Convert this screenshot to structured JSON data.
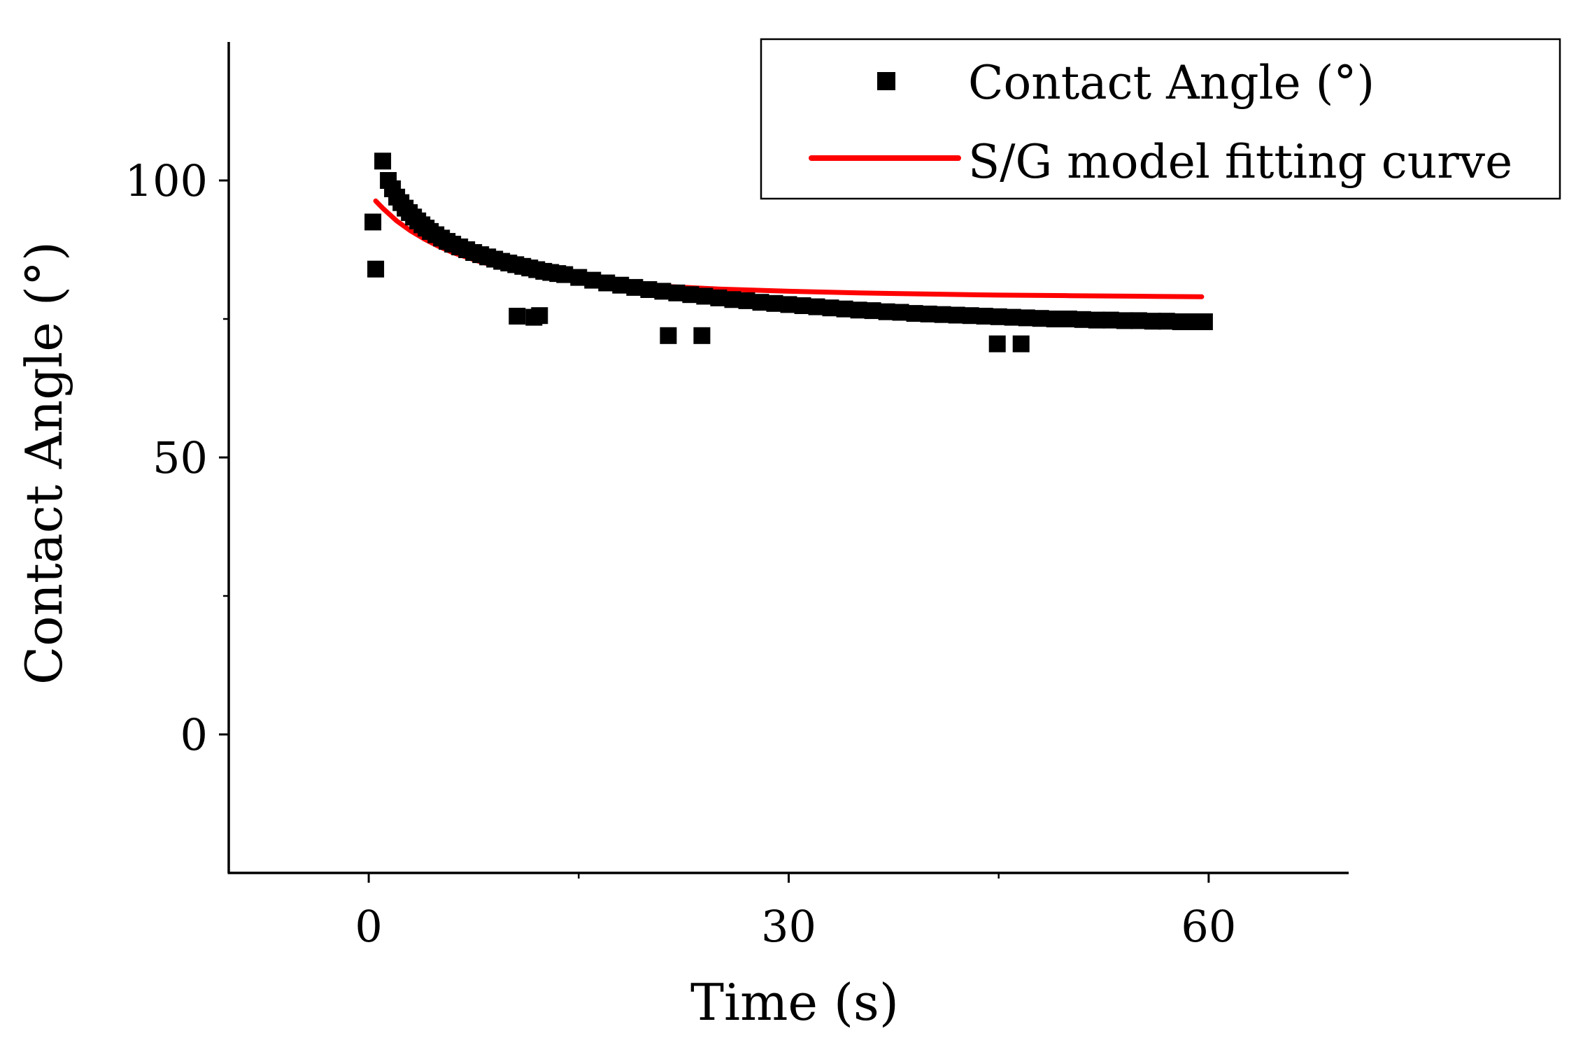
{
  "chart_data": {
    "type": "scatter",
    "title": "",
    "xlabel": "Time (s)",
    "ylabel": "Contact Angle (°)",
    "xlim": [
      -10,
      70
    ],
    "ylim": [
      -25,
      125
    ],
    "xticks": [
      0,
      30,
      60
    ],
    "xtick_labels": [
      "0",
      "30",
      "60"
    ],
    "xminor_ticks": [
      15,
      45
    ],
    "yticks": [
      0,
      50,
      100
    ],
    "ytick_labels": [
      "0",
      "50",
      "100"
    ],
    "yminor_ticks": [
      25,
      75
    ],
    "legend_position": "top-right",
    "colors": {
      "points": "#000000",
      "fit": "#ff0000",
      "axis": "#000000"
    },
    "series": [
      {
        "name": "Contact Angle (°)",
        "kind": "scatter",
        "marker": "square",
        "x": [
          0.3,
          0.5,
          1.0,
          1.4,
          1.7,
          2.0,
          2.3,
          2.6,
          2.9,
          3.2,
          3.5,
          3.8,
          4.1,
          4.4,
          4.8,
          5.2,
          5.6,
          6.0,
          6.5,
          7.0,
          7.5,
          8.0,
          8.5,
          9.0,
          9.5,
          10.0,
          10.5,
          11.0,
          11.5,
          12.0,
          12.5,
          13.0,
          13.5,
          14.0,
          15.0,
          16.0,
          17.0,
          18.0,
          19.0,
          20.0,
          21.0,
          22.0,
          23.0,
          24.0,
          25.0,
          26.0,
          27.0,
          28.0,
          29.0,
          30.0,
          31.0,
          32.0,
          33.0,
          34.0,
          35.0,
          36.0,
          37.0,
          38.0,
          39.0,
          40.0,
          41.0,
          42.0,
          43.0,
          44.0,
          45.0,
          46.0,
          47.0,
          48.0,
          49.0,
          50.0,
          51.0,
          52.0,
          53.0,
          54.0,
          55.0,
          56.0,
          57.0,
          58.0,
          59.0,
          59.7,
          10.6,
          11.8,
          12.2,
          21.4,
          23.8,
          44.9,
          46.6
        ],
        "y": [
          92.5,
          84.0,
          103.5,
          100.0,
          98.5,
          97.0,
          96.0,
          95.0,
          94.2,
          93.4,
          92.7,
          92.0,
          91.4,
          90.8,
          90.2,
          89.6,
          89.0,
          88.5,
          88.0,
          87.5,
          87.0,
          86.6,
          86.2,
          85.8,
          85.4,
          85.1,
          84.8,
          84.5,
          84.2,
          83.9,
          83.6,
          83.4,
          83.2,
          83.0,
          82.5,
          82.0,
          81.5,
          81.1,
          80.7,
          80.3,
          80.0,
          79.7,
          79.4,
          79.1,
          78.8,
          78.5,
          78.3,
          78.0,
          77.8,
          77.6,
          77.4,
          77.2,
          77.0,
          76.8,
          76.6,
          76.5,
          76.3,
          76.2,
          76.0,
          75.9,
          75.8,
          75.7,
          75.6,
          75.5,
          75.4,
          75.3,
          75.2,
          75.1,
          75.0,
          75.0,
          74.9,
          74.8,
          74.8,
          74.7,
          74.7,
          74.6,
          74.6,
          74.5,
          74.5,
          74.5,
          75.5,
          75.3,
          75.6,
          72.0,
          72.0,
          70.5,
          70.5
        ]
      },
      {
        "name": "S/G model fitting curve",
        "kind": "line",
        "x": [
          0.5,
          1,
          2,
          3,
          4,
          5,
          6,
          8,
          10,
          12,
          15,
          18,
          21,
          25,
          30,
          35,
          40,
          45,
          50,
          55,
          59.5
        ],
        "y": [
          96.3,
          95.0,
          92.7,
          90.9,
          89.4,
          88.1,
          87.0,
          85.3,
          84.0,
          83.1,
          82.1,
          81.4,
          80.9,
          80.4,
          80.0,
          79.7,
          79.5,
          79.3,
          79.2,
          79.1,
          79.0
        ]
      }
    ]
  }
}
